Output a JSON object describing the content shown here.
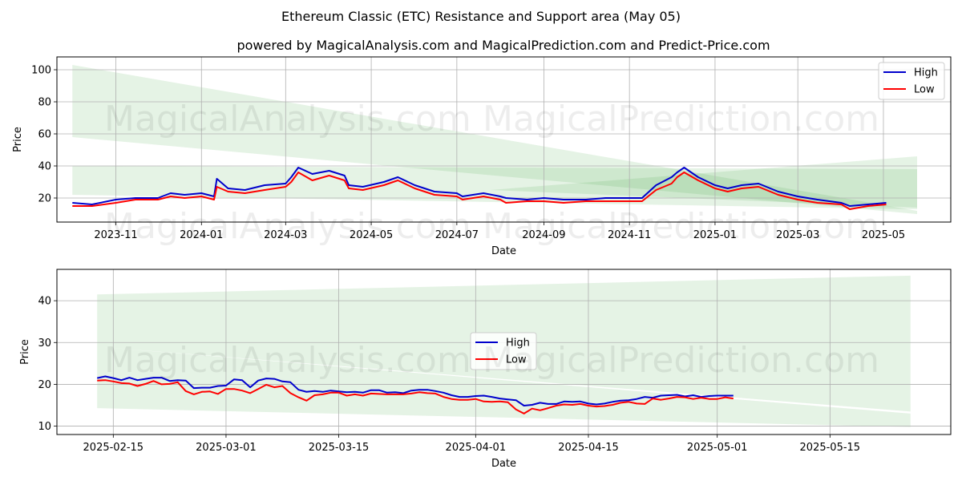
{
  "figure": {
    "title": "Ethereum Classic (ETC) Resistance and Support area (May 05)",
    "subtitle": "powered by MagicalAnalysis.com and MagicalPrediction.com and Predict-Price.com",
    "watermarks": [
      "MagicalAnalysis.com",
      "MagicalPrediction.com"
    ]
  },
  "chart_data": [
    {
      "type": "line",
      "xlabel": "Date",
      "ylabel": "Price",
      "xlim": [
        "2023-09-20",
        "2025-06-18"
      ],
      "ylim": [
        5,
        108
      ],
      "grid": true,
      "legend": {
        "position": "top-right",
        "entries": [
          "High",
          "Low"
        ]
      },
      "x_ticks": [
        "2023-11",
        "2024-01",
        "2024-03",
        "2024-05",
        "2024-07",
        "2024-09",
        "2024-11",
        "2025-01",
        "2025-03",
        "2025-05"
      ],
      "x_tick_dates": [
        "2023-11-01",
        "2024-01-01",
        "2024-03-01",
        "2024-05-01",
        "2024-07-01",
        "2024-09-01",
        "2024-11-01",
        "2025-01-01",
        "2025-03-01",
        "2025-05-01"
      ],
      "y_ticks": [
        20,
        40,
        60,
        80,
        100
      ],
      "bands": [
        {
          "x": [
            "2023-10-01",
            "2025-05-25"
          ],
          "upper": [
            103,
            12
          ],
          "lower": [
            58,
            10
          ]
        },
        {
          "x": [
            "2023-10-01",
            "2025-05-25"
          ],
          "upper": [
            40,
            38
          ],
          "lower": [
            22,
            13
          ]
        },
        {
          "x": [
            "2024-07-25",
            "2025-05-25"
          ],
          "upper": [
            25,
            46
          ],
          "lower": [
            25,
            14
          ]
        }
      ],
      "series": [
        {
          "name": "High",
          "color": "#0000cc",
          "x": [
            "2023-10-01",
            "2023-10-15",
            "2023-11-01",
            "2023-11-15",
            "2023-12-01",
            "2023-12-10",
            "2023-12-20",
            "2024-01-01",
            "2024-01-10",
            "2024-01-12",
            "2024-01-20",
            "2024-02-01",
            "2024-02-15",
            "2024-03-01",
            "2024-03-05",
            "2024-03-10",
            "2024-03-20",
            "2024-04-01",
            "2024-04-12",
            "2024-04-15",
            "2024-04-25",
            "2024-05-10",
            "2024-05-20",
            "2024-06-01",
            "2024-06-15",
            "2024-07-01",
            "2024-07-05",
            "2024-07-20",
            "2024-08-01",
            "2024-08-05",
            "2024-08-20",
            "2024-09-01",
            "2024-09-15",
            "2024-10-01",
            "2024-10-15",
            "2024-11-01",
            "2024-11-10",
            "2024-11-20",
            "2024-12-01",
            "2024-12-05",
            "2024-12-10",
            "2024-12-20",
            "2025-01-01",
            "2025-01-10",
            "2025-01-20",
            "2025-02-01",
            "2025-02-15",
            "2025-03-01",
            "2025-03-15",
            "2025-04-01",
            "2025-04-07",
            "2025-04-20",
            "2025-05-03"
          ],
          "values": [
            17,
            16,
            19,
            20,
            20,
            23,
            22,
            23,
            21,
            32,
            26,
            25,
            28,
            29,
            33,
            39,
            35,
            37,
            34,
            28,
            27,
            30,
            33,
            28,
            24,
            23,
            21,
            23,
            21,
            20,
            19,
            20,
            19,
            19,
            20,
            20,
            20,
            28,
            33,
            36,
            39,
            33,
            28,
            26,
            28,
            29,
            24,
            21,
            19,
            17,
            15,
            16,
            17
          ]
        },
        {
          "name": "Low",
          "color": "#ff0000",
          "x": [
            "2023-10-01",
            "2023-10-15",
            "2023-11-01",
            "2023-11-15",
            "2023-12-01",
            "2023-12-10",
            "2023-12-20",
            "2024-01-01",
            "2024-01-10",
            "2024-01-12",
            "2024-01-20",
            "2024-02-01",
            "2024-02-15",
            "2024-03-01",
            "2024-03-05",
            "2024-03-10",
            "2024-03-20",
            "2024-04-01",
            "2024-04-12",
            "2024-04-15",
            "2024-04-25",
            "2024-05-10",
            "2024-05-20",
            "2024-06-01",
            "2024-06-15",
            "2024-07-01",
            "2024-07-05",
            "2024-07-20",
            "2024-08-01",
            "2024-08-05",
            "2024-08-20",
            "2024-09-01",
            "2024-09-15",
            "2024-10-01",
            "2024-10-15",
            "2024-11-01",
            "2024-11-10",
            "2024-11-20",
            "2024-12-01",
            "2024-12-05",
            "2024-12-10",
            "2024-12-20",
            "2025-01-01",
            "2025-01-10",
            "2025-01-20",
            "2025-02-01",
            "2025-02-15",
            "2025-03-01",
            "2025-03-15",
            "2025-04-01",
            "2025-04-07",
            "2025-04-20",
            "2025-05-03"
          ],
          "values": [
            15,
            15,
            17,
            19,
            19,
            21,
            20,
            21,
            19,
            27,
            24,
            23,
            25,
            27,
            30,
            36,
            31,
            34,
            31,
            26,
            25,
            28,
            31,
            26,
            22,
            21,
            19,
            21,
            19,
            17,
            18,
            18,
            17,
            18,
            18,
            18,
            18,
            25,
            29,
            33,
            36,
            31,
            26,
            24,
            26,
            27,
            22,
            19,
            17,
            16,
            13,
            15,
            16
          ]
        }
      ]
    },
    {
      "type": "line",
      "xlabel": "Date",
      "ylabel": "Price",
      "xlim": [
        "2025-02-08",
        "2025-05-30"
      ],
      "ylim": [
        8,
        47.5
      ],
      "grid": true,
      "legend": {
        "position": "center",
        "entries": [
          "High",
          "Low"
        ]
      },
      "x_ticks": [
        "2025-02-15",
        "2025-03-01",
        "2025-03-15",
        "2025-04-01",
        "2025-04-15",
        "2025-05-01",
        "2025-05-15"
      ],
      "x_tick_dates": [
        "2025-02-15",
        "2025-03-01",
        "2025-03-15",
        "2025-04-01",
        "2025-04-15",
        "2025-05-01",
        "2025-05-15"
      ],
      "y_ticks": [
        10,
        20,
        30,
        40
      ],
      "bands": [
        {
          "x": [
            "2025-02-13",
            "2025-05-25"
          ],
          "upper": [
            41.5,
            46
          ],
          "lower": [
            38,
            38
          ]
        },
        {
          "x": [
            "2025-02-13",
            "2025-05-25"
          ],
          "upper": [
            38,
            38
          ],
          "lower": [
            29,
            13.5
          ]
        },
        {
          "x": [
            "2025-02-13",
            "2025-05-25"
          ],
          "upper": [
            29,
            13
          ],
          "lower": [
            14.3,
            9.8
          ]
        }
      ],
      "series": [
        {
          "name": "High",
          "color": "#0000cc",
          "x": [
            "2025-02-13",
            "2025-02-14",
            "2025-02-15",
            "2025-02-16",
            "2025-02-17",
            "2025-02-18",
            "2025-02-19",
            "2025-02-20",
            "2025-02-21",
            "2025-02-22",
            "2025-02-23",
            "2025-02-24",
            "2025-02-25",
            "2025-02-26",
            "2025-02-27",
            "2025-02-28",
            "2025-03-01",
            "2025-03-02",
            "2025-03-03",
            "2025-03-04",
            "2025-03-05",
            "2025-03-06",
            "2025-03-07",
            "2025-03-08",
            "2025-03-09",
            "2025-03-10",
            "2025-03-11",
            "2025-03-12",
            "2025-03-13",
            "2025-03-14",
            "2025-03-15",
            "2025-03-16",
            "2025-03-17",
            "2025-03-18",
            "2025-03-19",
            "2025-03-20",
            "2025-03-21",
            "2025-03-22",
            "2025-03-23",
            "2025-03-24",
            "2025-03-25",
            "2025-03-26",
            "2025-03-27",
            "2025-03-28",
            "2025-03-29",
            "2025-03-30",
            "2025-03-31",
            "2025-04-01",
            "2025-04-02",
            "2025-04-03",
            "2025-04-04",
            "2025-04-05",
            "2025-04-06",
            "2025-04-07",
            "2025-04-08",
            "2025-04-09",
            "2025-04-10",
            "2025-04-11",
            "2025-04-12",
            "2025-04-13",
            "2025-04-14",
            "2025-04-15",
            "2025-04-16",
            "2025-04-17",
            "2025-04-18",
            "2025-04-19",
            "2025-04-20",
            "2025-04-21",
            "2025-04-22",
            "2025-04-23",
            "2025-04-24",
            "2025-04-25",
            "2025-04-26",
            "2025-04-27",
            "2025-04-28",
            "2025-04-29",
            "2025-04-30",
            "2025-05-01",
            "2025-05-02",
            "2025-05-03"
          ],
          "values": [
            21.5,
            21.9,
            21.5,
            21.0,
            21.6,
            21.0,
            21.3,
            21.6,
            21.6,
            20.8,
            21.0,
            20.9,
            19.1,
            19.2,
            19.2,
            19.6,
            19.7,
            21.2,
            21.0,
            19.3,
            20.9,
            21.4,
            21.3,
            20.7,
            20.5,
            18.7,
            18.2,
            18.4,
            18.2,
            18.5,
            18.3,
            18.1,
            18.2,
            18.0,
            18.6,
            18.6,
            18.0,
            18.1,
            17.9,
            18.5,
            18.7,
            18.7,
            18.4,
            18.0,
            17.4,
            17.0,
            17.0,
            17.2,
            17.3,
            17.0,
            16.6,
            16.4,
            16.2,
            14.9,
            15.1,
            15.6,
            15.3,
            15.3,
            15.9,
            15.8,
            15.9,
            15.4,
            15.2,
            15.4,
            15.8,
            16.1,
            16.2,
            16.5,
            17.0,
            16.8,
            17.3,
            17.4,
            17.5,
            17.1,
            17.4,
            17.0,
            17.2,
            17.3,
            17.3,
            17.3
          ]
        },
        {
          "name": "Low",
          "color": "#ff0000",
          "x": [
            "2025-02-13",
            "2025-02-14",
            "2025-02-15",
            "2025-02-16",
            "2025-02-17",
            "2025-02-18",
            "2025-02-19",
            "2025-02-20",
            "2025-02-21",
            "2025-02-22",
            "2025-02-23",
            "2025-02-24",
            "2025-02-25",
            "2025-02-26",
            "2025-02-27",
            "2025-02-28",
            "2025-03-01",
            "2025-03-02",
            "2025-03-03",
            "2025-03-04",
            "2025-03-05",
            "2025-03-06",
            "2025-03-07",
            "2025-03-08",
            "2025-03-09",
            "2025-03-10",
            "2025-03-11",
            "2025-03-12",
            "2025-03-13",
            "2025-03-14",
            "2025-03-15",
            "2025-03-16",
            "2025-03-17",
            "2025-03-18",
            "2025-03-19",
            "2025-03-20",
            "2025-03-21",
            "2025-03-22",
            "2025-03-23",
            "2025-03-24",
            "2025-03-25",
            "2025-03-26",
            "2025-03-27",
            "2025-03-28",
            "2025-03-29",
            "2025-03-30",
            "2025-03-31",
            "2025-04-01",
            "2025-04-02",
            "2025-04-03",
            "2025-04-04",
            "2025-04-05",
            "2025-04-06",
            "2025-04-07",
            "2025-04-08",
            "2025-04-09",
            "2025-04-10",
            "2025-04-11",
            "2025-04-12",
            "2025-04-13",
            "2025-04-14",
            "2025-04-15",
            "2025-04-16",
            "2025-04-17",
            "2025-04-18",
            "2025-04-19",
            "2025-04-20",
            "2025-04-21",
            "2025-04-22",
            "2025-04-23",
            "2025-04-24",
            "2025-04-25",
            "2025-04-26",
            "2025-04-27",
            "2025-04-28",
            "2025-04-29",
            "2025-04-30",
            "2025-05-01",
            "2025-05-02",
            "2025-05-03"
          ],
          "values": [
            20.9,
            21.0,
            20.7,
            20.3,
            20.2,
            19.6,
            20.1,
            20.8,
            20.0,
            20.1,
            20.5,
            18.4,
            17.6,
            18.2,
            18.3,
            17.7,
            18.9,
            18.9,
            18.5,
            17.9,
            18.9,
            19.9,
            19.3,
            19.6,
            17.9,
            16.9,
            16.1,
            17.4,
            17.6,
            18.0,
            18.0,
            17.3,
            17.6,
            17.3,
            17.8,
            17.7,
            17.6,
            17.6,
            17.6,
            17.8,
            18.1,
            17.9,
            17.8,
            17.0,
            16.5,
            16.3,
            16.3,
            16.5,
            15.9,
            15.8,
            15.9,
            15.7,
            14.0,
            13.0,
            14.2,
            13.8,
            14.3,
            14.9,
            15.2,
            15.1,
            15.3,
            14.9,
            14.7,
            14.8,
            15.1,
            15.6,
            15.8,
            15.4,
            15.3,
            16.6,
            16.3,
            16.6,
            17.0,
            16.9,
            16.5,
            16.8,
            16.5,
            16.5,
            16.9,
            16.6
          ]
        }
      ]
    }
  ]
}
